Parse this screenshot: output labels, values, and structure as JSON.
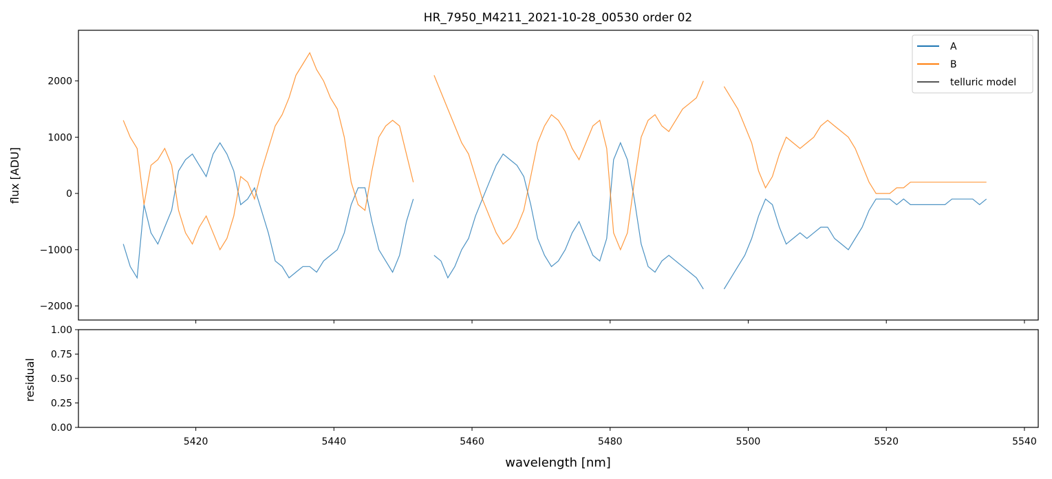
{
  "title": "HR_7950_M4211_2021-10-28_00530  order 02",
  "colors": {
    "series_a": "#1f77b4",
    "series_b": "#ff7f0e",
    "telluric": "#555555",
    "axes": "#000000",
    "background": "#ffffff"
  },
  "chart_data": [
    {
      "type": "line",
      "panel": "flux",
      "xlabel": "",
      "ylabel": "flux [ADU]",
      "xlim": [
        5403,
        5542
      ],
      "ylim": [
        -2250,
        2900
      ],
      "yticks": [
        -2000,
        -1000,
        0,
        1000,
        2000
      ],
      "xticks": [
        5420,
        5440,
        5460,
        5480,
        5500,
        5520,
        5540
      ],
      "x_tick_labels_shown": false,
      "grid": false,
      "legend_position": "top-right",
      "legend": [
        "A",
        "B",
        "telluric model"
      ],
      "series": [
        {
          "name": "A",
          "color": "#1f77b4",
          "x": [
            5409.5,
            5410.5,
            5411.5,
            5412.5,
            5413.5,
            5414.5,
            5415.5,
            5416.5,
            5417.5,
            5418.5,
            5419.5,
            5420.5,
            5421.5,
            5422.5,
            5423.5,
            5424.5,
            5425.5,
            5426.5,
            5427.5,
            5428.5,
            5429.5,
            5430.5,
            5431.5,
            5432.5,
            5433.5,
            5434.5,
            5435.5,
            5436.5,
            5437.5,
            5438.5,
            5439.5,
            5440.5,
            5441.5,
            5442.5,
            5443.5,
            5444.5,
            5445.5,
            5446.5,
            5447.5,
            5448.5,
            5449.5,
            5450.5,
            5451.5,
            5452.5,
            5453.5,
            5454.5,
            5455.5,
            5456.5,
            5457.5,
            5458.5,
            5459.5,
            5460.5,
            5461.5,
            5462.5,
            5463.5,
            5464.5,
            5465.5,
            5466.5,
            5467.5,
            5468.5,
            5469.5,
            5470.5,
            5471.5,
            5472.5,
            5473.5,
            5474.5,
            5475.5,
            5476.5,
            5477.5,
            5478.5,
            5479.5,
            5480.5,
            5481.5,
            5482.5,
            5483.5,
            5484.5,
            5485.5,
            5486.5,
            5487.5,
            5488.5,
            5489.5,
            5490.5,
            5491.5,
            5492.5,
            5493.5,
            5494.5,
            5495.5,
            5496.5,
            5497.5,
            5498.5,
            5499.5,
            5500.5,
            5501.5,
            5502.5,
            5503.5,
            5504.5,
            5505.5,
            5506.5,
            5507.5,
            5508.5,
            5509.5,
            5510.5,
            5511.5,
            5512.5,
            5513.5,
            5514.5,
            5515.5,
            5516.5,
            5517.5,
            5518.5,
            5519.5,
            5520.5,
            5521.5,
            5522.5,
            5523.5,
            5524.5,
            5525.5,
            5526.5,
            5527.5,
            5528.5,
            5529.5,
            5530.5,
            5531.5,
            5532.5,
            5533.5,
            5534.5
          ],
          "values": [
            -900,
            -1300,
            -1500,
            -200,
            -700,
            -900,
            -600,
            -300,
            400,
            600,
            700,
            500,
            300,
            700,
            900,
            700,
            400,
            -200,
            -100,
            100,
            -300,
            -700,
            -1200,
            -1300,
            -1500,
            -1400,
            -1300,
            -1300,
            -1400,
            -1200,
            -1100,
            -1000,
            -700,
            -200,
            100,
            100,
            -500,
            -1000,
            -1200,
            -1400,
            -1100,
            -500,
            -100,
            null,
            null,
            -1100,
            -1200,
            -1500,
            -1300,
            -1000,
            -800,
            -400,
            -100,
            200,
            500,
            700,
            600,
            500,
            300,
            -200,
            -800,
            -1100,
            -1300,
            -1200,
            -1000,
            -700,
            -500,
            -800,
            -1100,
            -1200,
            -800,
            600,
            900,
            600,
            -100,
            -900,
            -1300,
            -1400,
            -1200,
            -1100,
            -1200,
            -1300,
            -1400,
            -1500,
            -1700,
            null,
            null,
            -1700,
            -1500,
            -1300,
            -1100,
            -800,
            -400,
            -100,
            -200,
            -600,
            -900,
            -800,
            -700,
            -800,
            -700,
            -600,
            -600,
            -800,
            -900,
            -1000,
            -800,
            -600,
            -300,
            -100,
            -100,
            -100,
            -200,
            -100,
            -200,
            -200,
            -200,
            -200,
            -200,
            -200,
            -100,
            -100,
            -100,
            -100,
            -200,
            -100
          ]
        },
        {
          "name": "B",
          "color": "#ff7f0e",
          "x": [
            5409.5,
            5410.5,
            5411.5,
            5412.5,
            5413.5,
            5414.5,
            5415.5,
            5416.5,
            5417.5,
            5418.5,
            5419.5,
            5420.5,
            5421.5,
            5422.5,
            5423.5,
            5424.5,
            5425.5,
            5426.5,
            5427.5,
            5428.5,
            5429.5,
            5430.5,
            5431.5,
            5432.5,
            5433.5,
            5434.5,
            5435.5,
            5436.5,
            5437.5,
            5438.5,
            5439.5,
            5440.5,
            5441.5,
            5442.5,
            5443.5,
            5444.5,
            5445.5,
            5446.5,
            5447.5,
            5448.5,
            5449.5,
            5450.5,
            5451.5,
            5452.5,
            5453.5,
            5454.5,
            5455.5,
            5456.5,
            5457.5,
            5458.5,
            5459.5,
            5460.5,
            5461.5,
            5462.5,
            5463.5,
            5464.5,
            5465.5,
            5466.5,
            5467.5,
            5468.5,
            5469.5,
            5470.5,
            5471.5,
            5472.5,
            5473.5,
            5474.5,
            5475.5,
            5476.5,
            5477.5,
            5478.5,
            5479.5,
            5480.5,
            5481.5,
            5482.5,
            5483.5,
            5484.5,
            5485.5,
            5486.5,
            5487.5,
            5488.5,
            5489.5,
            5490.5,
            5491.5,
            5492.5,
            5493.5,
            5494.5,
            5495.5,
            5496.5,
            5497.5,
            5498.5,
            5499.5,
            5500.5,
            5501.5,
            5502.5,
            5503.5,
            5504.5,
            5505.5,
            5506.5,
            5507.5,
            5508.5,
            5509.5,
            5510.5,
            5511.5,
            5512.5,
            5513.5,
            5514.5,
            5515.5,
            5516.5,
            5517.5,
            5518.5,
            5519.5,
            5520.5,
            5521.5,
            5522.5,
            5523.5,
            5524.5,
            5525.5,
            5526.5,
            5527.5,
            5528.5,
            5529.5,
            5530.5,
            5531.5,
            5532.5,
            5533.5,
            5534.5
          ],
          "values": [
            1300,
            1000,
            800,
            -200,
            500,
            600,
            800,
            500,
            -300,
            -700,
            -900,
            -600,
            -400,
            -700,
            -1000,
            -800,
            -400,
            300,
            200,
            -100,
            400,
            800,
            1200,
            1400,
            1700,
            2100,
            2300,
            2500,
            2200,
            2000,
            1700,
            1500,
            1000,
            200,
            -200,
            -300,
            400,
            1000,
            1200,
            1300,
            1200,
            700,
            200,
            null,
            null,
            2100,
            1800,
            1500,
            1200,
            900,
            700,
            300,
            -100,
            -400,
            -700,
            -900,
            -800,
            -600,
            -300,
            300,
            900,
            1200,
            1400,
            1300,
            1100,
            800,
            600,
            900,
            1200,
            1300,
            800,
            -700,
            -1000,
            -700,
            200,
            1000,
            1300,
            1400,
            1200,
            1100,
            1300,
            1500,
            1600,
            1700,
            2000,
            null,
            null,
            1900,
            1700,
            1500,
            1200,
            900,
            400,
            100,
            300,
            700,
            1000,
            900,
            800,
            900,
            1000,
            1200,
            1300,
            1200,
            1100,
            1000,
            800,
            500,
            200,
            0,
            0,
            0,
            100,
            100,
            200,
            200,
            200,
            200,
            200,
            200,
            200,
            200,
            200,
            200,
            200,
            200
          ]
        },
        {
          "name": "telluric model",
          "color": "#555555",
          "x": [],
          "values": []
        }
      ]
    },
    {
      "type": "line",
      "panel": "residual",
      "xlabel": "wavelength [nm]",
      "ylabel": "residual",
      "xlim": [
        5403,
        5542
      ],
      "ylim": [
        0,
        1
      ],
      "yticks": [
        "0.00",
        "0.25",
        "0.50",
        "0.75",
        "1.00"
      ],
      "xticks": [
        "5420",
        "5440",
        "5460",
        "5480",
        "5500",
        "5520",
        "5540"
      ],
      "grid": false,
      "series": []
    }
  ]
}
